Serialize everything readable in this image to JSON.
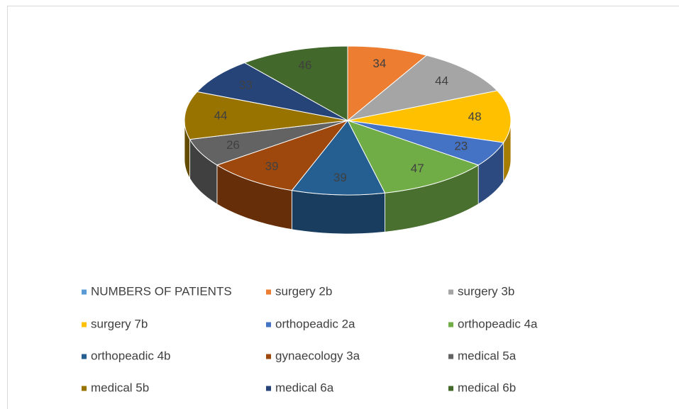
{
  "chart_data": {
    "type": "pie3d",
    "categories": [
      "NUMBERS OF PATIENTS",
      "surgery 2b",
      "surgery 3b",
      "surgery 7b",
      "orthopeadic 2a",
      "orthopeadic 4a",
      "orthopeadic 4b",
      "gynaecology 3a",
      "medical 5a",
      "medical 5b",
      "medical 6a",
      "medical 6b"
    ],
    "values": [
      null,
      34,
      44,
      48,
      23,
      47,
      39,
      39,
      26,
      44,
      33,
      46
    ],
    "colors": [
      "#5b9bd5",
      "#ed7d31",
      "#a5a5a5",
      "#ffc000",
      "#4472c4",
      "#70ad47",
      "#255e91",
      "#9e480e",
      "#636363",
      "#997300",
      "#264478",
      "#43682b"
    ],
    "legend": "bottom"
  }
}
